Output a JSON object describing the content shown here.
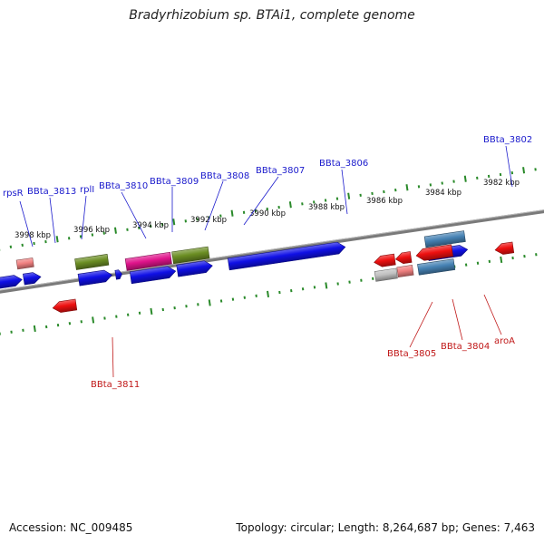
{
  "title": "Bradyrhizobium sp. BTAi1, complete genome",
  "accession": "Accession: NC_009485",
  "topology": "Topology: circular; Length: 8,264,687 bp; Genes: 7,463",
  "colors": {
    "backbone": "#7a7a7a",
    "tick": "#2a8a2a",
    "label_forward": "#1a1acc",
    "label_reverse": "#c01818",
    "gene_blue": "#1010e6",
    "gene_red": "#ee1010",
    "gene_olive": "#6b8e23",
    "gene_magenta": "#e0148c",
    "gene_steel": "#4682b4",
    "gene_salmon": "#f08080",
    "gene_gray": "#c0c0c0",
    "gene_purple": "#6a5acd"
  },
  "ruler": [
    "3998 kbp",
    "3996 kbp",
    "3994 kbp",
    "3992 kbp",
    "3990 kbp",
    "3988 kbp",
    "3986 kbp",
    "3984 kbp",
    "3982 kbp"
  ],
  "upper_labels": [
    "rpsR",
    "BBta_3813",
    "rplI",
    "BBta_3810",
    "BBta_3809",
    "BBta_3808",
    "BBta_3807",
    "BBta_3806",
    "BBta_3802"
  ],
  "lower_labels": [
    "BBta_3811",
    "BBta_3805",
    "BBta_3804",
    "aroA"
  ]
}
